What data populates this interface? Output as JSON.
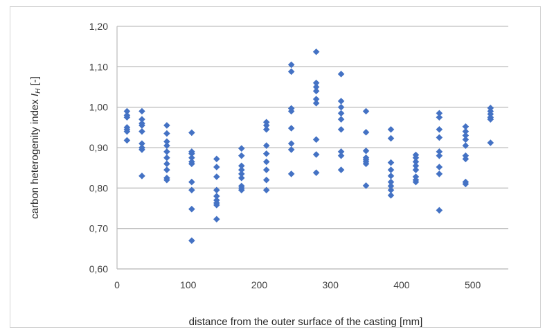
{
  "chart_data": {
    "type": "scatter",
    "xlabel": "distance from the outer surface of the casting [mm]",
    "ylabel_prefix": "carbon heterogenity index ",
    "ylabel_symbol": "I",
    "ylabel_subscript": "H",
    "ylabel_suffix": " [-]",
    "xlim": [
      0,
      550
    ],
    "ylim": [
      0.6,
      1.2
    ],
    "xticks": [
      0,
      100,
      200,
      300,
      400,
      500
    ],
    "yticks": [
      0.6,
      0.7,
      0.8,
      0.9,
      1.0,
      1.1,
      1.2
    ],
    "ytick_labels": [
      "0,60",
      "0,70",
      "0,80",
      "0,90",
      "1,00",
      "1,10",
      "1,20"
    ],
    "grid": "horizontal",
    "marker_color": "#4472c4",
    "marker_shape": "diamond",
    "series": [
      {
        "points": [
          [
            14,
            0.99
          ],
          [
            14,
            0.98
          ],
          [
            14,
            0.975
          ],
          [
            14,
            0.95
          ],
          [
            14,
            0.945
          ],
          [
            14,
            0.94
          ],
          [
            14,
            0.918
          ],
          [
            35,
            0.99
          ],
          [
            35,
            0.97
          ],
          [
            35,
            0.96
          ],
          [
            35,
            0.955
          ],
          [
            35,
            0.94
          ],
          [
            35,
            0.91
          ],
          [
            35,
            0.9
          ],
          [
            35,
            0.895
          ],
          [
            35,
            0.83
          ],
          [
            70,
            0.955
          ],
          [
            70,
            0.935
          ],
          [
            70,
            0.915
          ],
          [
            70,
            0.905
          ],
          [
            70,
            0.89
          ],
          [
            70,
            0.875
          ],
          [
            70,
            0.86
          ],
          [
            70,
            0.845
          ],
          [
            70,
            0.825
          ],
          [
            70,
            0.82
          ],
          [
            105,
            0.937
          ],
          [
            105,
            0.89
          ],
          [
            105,
            0.885
          ],
          [
            105,
            0.875
          ],
          [
            105,
            0.865
          ],
          [
            105,
            0.86
          ],
          [
            105,
            0.815
          ],
          [
            105,
            0.795
          ],
          [
            105,
            0.748
          ],
          [
            105,
            0.67
          ],
          [
            140,
            0.872
          ],
          [
            140,
            0.852
          ],
          [
            140,
            0.828
          ],
          [
            140,
            0.795
          ],
          [
            140,
            0.78
          ],
          [
            140,
            0.77
          ],
          [
            140,
            0.763
          ],
          [
            140,
            0.758
          ],
          [
            140,
            0.723
          ],
          [
            175,
            0.898
          ],
          [
            175,
            0.88
          ],
          [
            175,
            0.855
          ],
          [
            175,
            0.845
          ],
          [
            175,
            0.835
          ],
          [
            175,
            0.825
          ],
          [
            175,
            0.805
          ],
          [
            175,
            0.8
          ],
          [
            175,
            0.795
          ],
          [
            210,
            0.963
          ],
          [
            210,
            0.955
          ],
          [
            210,
            0.945
          ],
          [
            210,
            0.905
          ],
          [
            210,
            0.885
          ],
          [
            210,
            0.865
          ],
          [
            210,
            0.845
          ],
          [
            210,
            0.82
          ],
          [
            210,
            0.795
          ],
          [
            245,
            1.105
          ],
          [
            245,
            1.088
          ],
          [
            245,
            0.997
          ],
          [
            245,
            0.99
          ],
          [
            245,
            0.948
          ],
          [
            245,
            0.91
          ],
          [
            245,
            0.895
          ],
          [
            245,
            0.835
          ],
          [
            280,
            1.137
          ],
          [
            280,
            1.06
          ],
          [
            280,
            1.05
          ],
          [
            280,
            1.04
          ],
          [
            280,
            1.02
          ],
          [
            280,
            1.01
          ],
          [
            280,
            0.92
          ],
          [
            280,
            0.883
          ],
          [
            280,
            0.838
          ],
          [
            315,
            1.082
          ],
          [
            315,
            1.015
          ],
          [
            315,
            1.0
          ],
          [
            315,
            0.985
          ],
          [
            315,
            0.97
          ],
          [
            315,
            0.945
          ],
          [
            315,
            0.89
          ],
          [
            315,
            0.88
          ],
          [
            315,
            0.845
          ],
          [
            350,
            0.99
          ],
          [
            350,
            0.938
          ],
          [
            350,
            0.892
          ],
          [
            350,
            0.875
          ],
          [
            350,
            0.87
          ],
          [
            350,
            0.865
          ],
          [
            350,
            0.86
          ],
          [
            350,
            0.806
          ],
          [
            385,
            0.945
          ],
          [
            385,
            0.923
          ],
          [
            385,
            0.863
          ],
          [
            385,
            0.845
          ],
          [
            385,
            0.83
          ],
          [
            385,
            0.815
          ],
          [
            385,
            0.805
          ],
          [
            385,
            0.795
          ],
          [
            385,
            0.782
          ],
          [
            420,
            0.882
          ],
          [
            420,
            0.875
          ],
          [
            420,
            0.865
          ],
          [
            420,
            0.855
          ],
          [
            420,
            0.845
          ],
          [
            420,
            0.828
          ],
          [
            420,
            0.82
          ],
          [
            420,
            0.815
          ],
          [
            453,
            0.985
          ],
          [
            453,
            0.975
          ],
          [
            453,
            0.945
          ],
          [
            453,
            0.925
          ],
          [
            453,
            0.89
          ],
          [
            453,
            0.88
          ],
          [
            453,
            0.852
          ],
          [
            453,
            0.835
          ],
          [
            453,
            0.745
          ],
          [
            490,
            0.952
          ],
          [
            490,
            0.94
          ],
          [
            490,
            0.93
          ],
          [
            490,
            0.92
          ],
          [
            490,
            0.905
          ],
          [
            490,
            0.88
          ],
          [
            490,
            0.872
          ],
          [
            490,
            0.815
          ],
          [
            490,
            0.81
          ],
          [
            525,
            0.998
          ],
          [
            525,
            0.99
          ],
          [
            525,
            0.983
          ],
          [
            525,
            0.975
          ],
          [
            525,
            0.97
          ],
          [
            525,
            0.912
          ]
        ]
      }
    ]
  }
}
